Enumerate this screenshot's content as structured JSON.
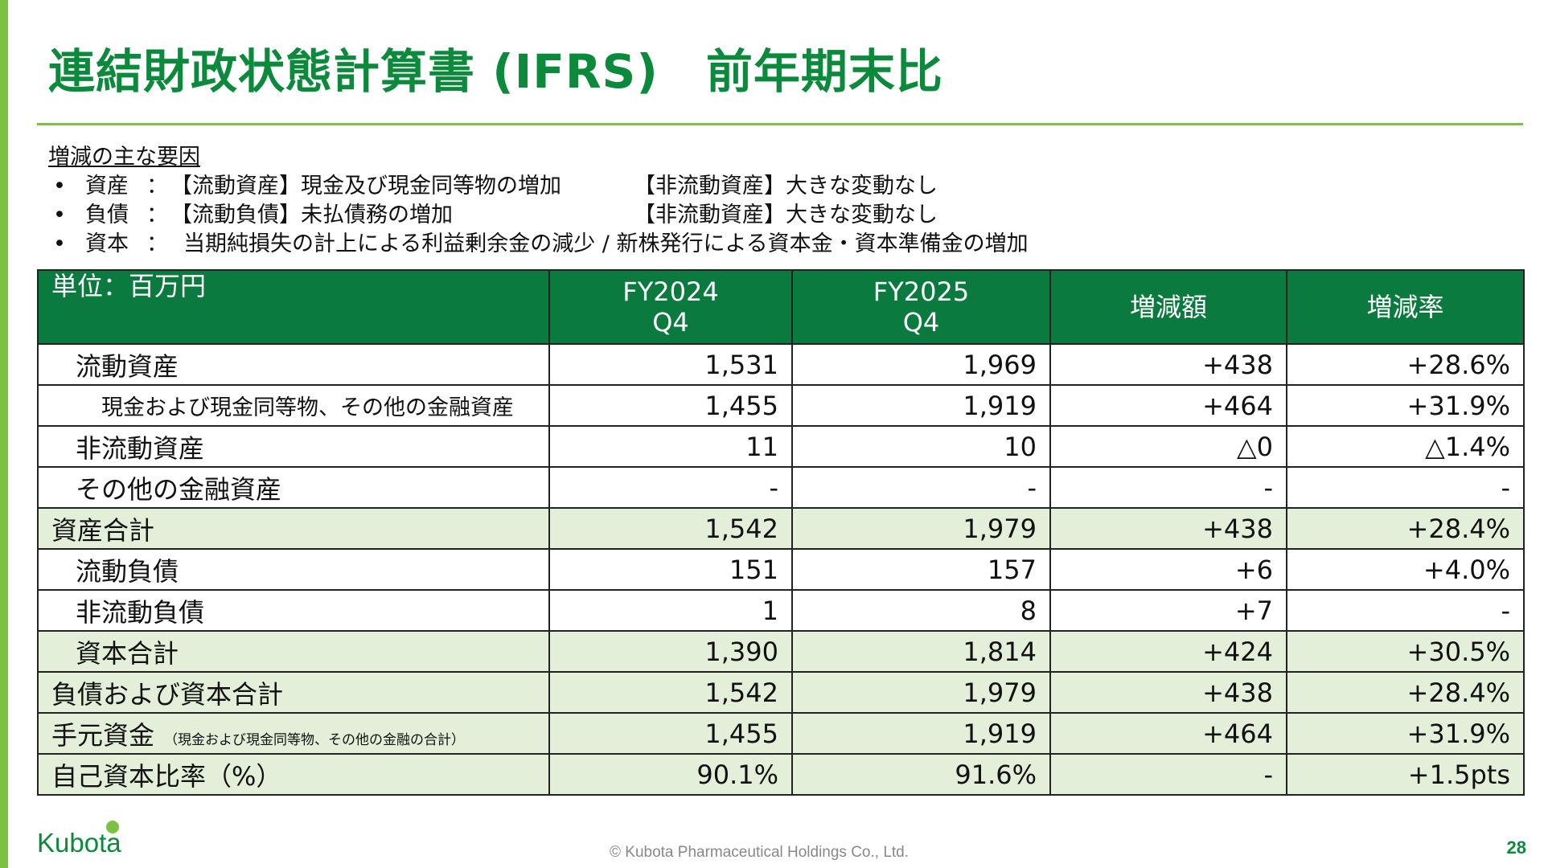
{
  "title": "連結財政状態計算書 (IFRS)　前年期末比",
  "notes": {
    "heading": "増減の主な要因",
    "items": [
      {
        "label": "資産",
        "colon": "：",
        "text1": "【流動資産】現金及び現金同等物の増加",
        "text2": "【非流動資産】大きな変動なし"
      },
      {
        "label": "負債",
        "colon": "：",
        "text1": "【流動負債】未払債務の増加",
        "text2": "【非流動資産】大きな変動なし"
      },
      {
        "label": "資本",
        "colon": "：",
        "text1": "当期純損失の計上による利益剰余金の減少 / 新株発行による資本金・資本準備金の増加"
      }
    ]
  },
  "table": {
    "header": {
      "unit": "単位：百万円",
      "fy2024_l1": "FY2024",
      "fy2024_l2": "Q4",
      "fy2025_l1": "FY2025",
      "fy2025_l2": "Q4",
      "change": "増減額",
      "rate": "増減率"
    },
    "rows": [
      {
        "label": "流動資産",
        "fy2024": "1,531",
        "fy2025": "1,969",
        "change": "+438",
        "rate": "+28.6%"
      },
      {
        "label": "現金および現金同等物、その他の金融資産",
        "fy2024": "1,455",
        "fy2025": "1,919",
        "change": "+464",
        "rate": "+31.9%"
      },
      {
        "label": "非流動資産",
        "fy2024": "11",
        "fy2025": "10",
        "change": "△0",
        "rate": "△1.4%"
      },
      {
        "label": "その他の金融資産",
        "fy2024": "-",
        "fy2025": "-",
        "change": "-",
        "rate": "-"
      },
      {
        "label": "資産合計",
        "fy2024": "1,542",
        "fy2025": "1,979",
        "change": "+438",
        "rate": "+28.4%"
      },
      {
        "label": "流動負債",
        "fy2024": "151",
        "fy2025": "157",
        "change": "+6",
        "rate": "+4.0%"
      },
      {
        "label": "非流動負債",
        "fy2024": "1",
        "fy2025": "8",
        "change": "+7",
        "rate": "-"
      },
      {
        "label": "資本合計",
        "fy2024": "1,390",
        "fy2025": "1,814",
        "change": "+424",
        "rate": "+30.5%"
      },
      {
        "label": "負債および資本合計",
        "fy2024": "1,542",
        "fy2025": "1,979",
        "change": "+438",
        "rate": "+28.4%"
      },
      {
        "label": "手元資金",
        "note": "（現金および現金同等物、その他の金融の合計）",
        "fy2024": "1,455",
        "fy2025": "1,919",
        "change": "+464",
        "rate": "+31.9%"
      },
      {
        "label": "自己資本比率（%）",
        "fy2024": "90.1%",
        "fy2025": "91.6%",
        "change": "-",
        "rate": "+1.5pts"
      }
    ]
  },
  "footer": {
    "logo_text": "Kubota",
    "copyright": "© Kubota Pharmaceutical Holdings Co., Ltd.",
    "page_number": "28"
  },
  "colors": {
    "brand_green": "#0b8a3c",
    "header_green": "#0b7a3e",
    "accent_lime": "#7cc242",
    "total_row_bg": "#e3efd9"
  }
}
